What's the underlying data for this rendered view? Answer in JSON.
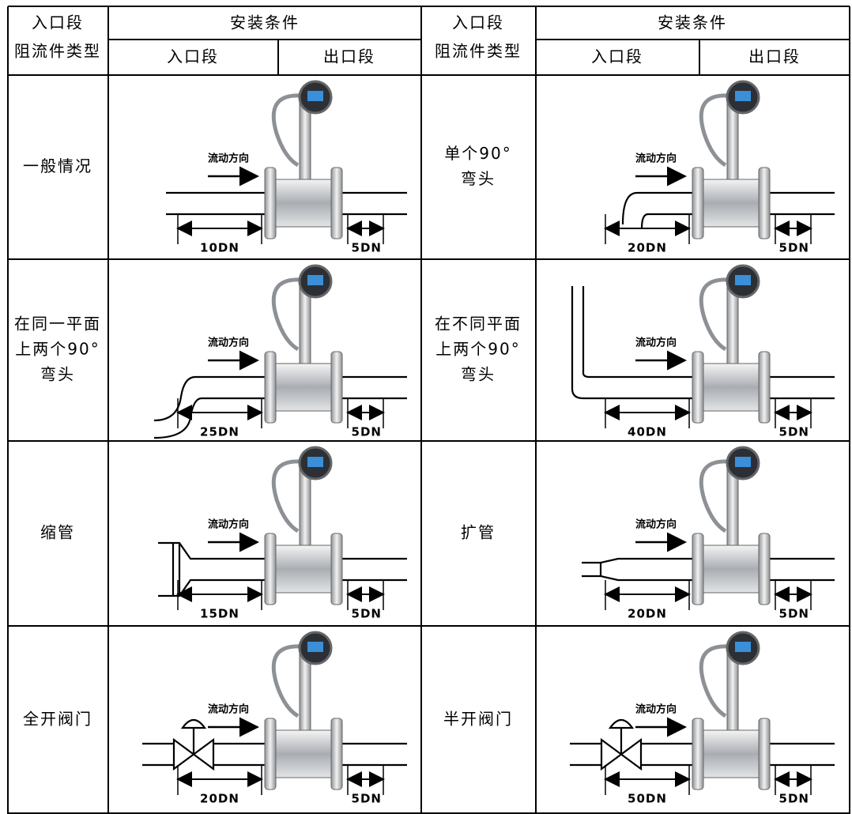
{
  "table": {
    "header": {
      "type_label": [
        "入口段",
        "阻流件类型"
      ],
      "install": "安装条件",
      "inlet": "入口段",
      "outlet": "出口段"
    },
    "rows": [
      {
        "left": {
          "type": [
            "一般情况"
          ],
          "flow": "流动方向",
          "inlet": "10DN",
          "outlet": "5DN"
        },
        "right": {
          "type": [
            "单个90°",
            "弯头"
          ],
          "flow": "流动方向",
          "inlet": "20DN",
          "outlet": "5DN"
        }
      },
      {
        "left": {
          "type": [
            "在同一平面",
            "上两个90°",
            "弯头"
          ],
          "flow": "流动方向",
          "inlet": "25DN",
          "outlet": "5DN"
        },
        "right": {
          "type": [
            "在不同平面",
            "上两个90°",
            "弯头"
          ],
          "flow": "流动方向",
          "inlet": "40DN",
          "outlet": "5DN"
        }
      },
      {
        "left": {
          "type": [
            "缩管"
          ],
          "flow": "流动方向",
          "inlet": "15DN",
          "outlet": "5DN"
        },
        "right": {
          "type": [
            "扩管"
          ],
          "flow": "流动方向",
          "inlet": "20DN",
          "outlet": "5DN"
        }
      },
      {
        "left": {
          "type": [
            "全开阀门"
          ],
          "flow": "流动方向",
          "inlet": "20DN",
          "outlet": "5DN"
        },
        "right": {
          "type": [
            "半开阀门"
          ],
          "flow": "流动方向",
          "inlet": "50DN",
          "outlet": "5DN"
        }
      }
    ]
  }
}
